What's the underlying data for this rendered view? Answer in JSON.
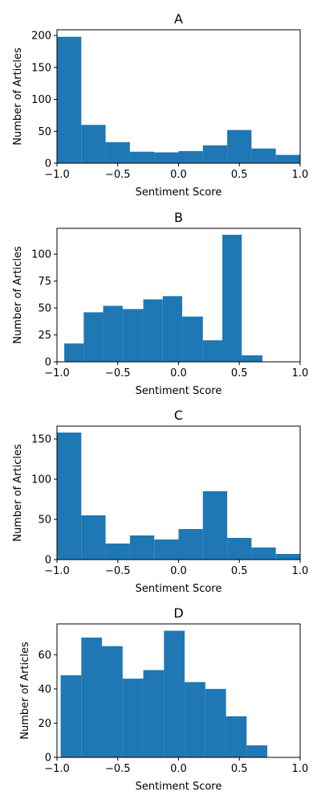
{
  "chart_data": [
    {
      "type": "bar",
      "title": "A",
      "xlabel": "Sentiment Score",
      "ylabel": "Number of Articles",
      "xlim": [
        -1.0,
        1.0
      ],
      "ylim": [
        0,
        209
      ],
      "xticks": [
        -1.0,
        -0.5,
        0.0,
        0.5,
        1.0
      ],
      "xtick_labels": [
        "−1.0",
        "−0.5",
        "0.0",
        "0.5",
        "1.0"
      ],
      "yticks": [
        0,
        50,
        100,
        150,
        200
      ],
      "bins": [
        {
          "x0": -1.0,
          "x1": -0.8,
          "value": 198
        },
        {
          "x0": -0.8,
          "x1": -0.6,
          "value": 60
        },
        {
          "x0": -0.6,
          "x1": -0.4,
          "value": 33
        },
        {
          "x0": -0.4,
          "x1": -0.2,
          "value": 18
        },
        {
          "x0": -0.2,
          "x1": 0.0,
          "value": 17
        },
        {
          "x0": 0.0,
          "x1": 0.2,
          "value": 19
        },
        {
          "x0": 0.2,
          "x1": 0.4,
          "value": 28
        },
        {
          "x0": 0.4,
          "x1": 0.6,
          "value": 52
        },
        {
          "x0": 0.6,
          "x1": 0.8,
          "value": 23
        },
        {
          "x0": 0.8,
          "x1": 1.0,
          "value": 13
        }
      ],
      "color": "#1f77b4"
    },
    {
      "type": "bar",
      "title": "B",
      "xlabel": "Sentiment Score",
      "ylabel": "Number of Articles",
      "xlim": [
        -1.0,
        1.0
      ],
      "ylim": [
        0,
        124
      ],
      "xticks": [
        -1.0,
        -0.5,
        0.0,
        0.5,
        1.0
      ],
      "xtick_labels": [
        "−1.0",
        "−0.5",
        "0.0",
        "0.5",
        "1.0"
      ],
      "yticks": [
        0,
        25,
        50,
        75,
        100
      ],
      "bins": [
        {
          "x0": -0.94,
          "x1": -0.78,
          "value": 17
        },
        {
          "x0": -0.78,
          "x1": -0.62,
          "value": 46
        },
        {
          "x0": -0.62,
          "x1": -0.46,
          "value": 52
        },
        {
          "x0": -0.46,
          "x1": -0.29,
          "value": 49
        },
        {
          "x0": -0.29,
          "x1": -0.13,
          "value": 58
        },
        {
          "x0": -0.13,
          "x1": 0.03,
          "value": 61
        },
        {
          "x0": 0.03,
          "x1": 0.2,
          "value": 42
        },
        {
          "x0": 0.2,
          "x1": 0.36,
          "value": 20
        },
        {
          "x0": 0.36,
          "x1": 0.52,
          "value": 118
        },
        {
          "x0": 0.52,
          "x1": 0.69,
          "value": 6
        }
      ],
      "color": "#1f77b4"
    },
    {
      "type": "bar",
      "title": "C",
      "xlabel": "Sentiment Score",
      "ylabel": "Number of Articles",
      "xlim": [
        -1.0,
        1.0
      ],
      "ylim": [
        0,
        166
      ],
      "xticks": [
        -1.0,
        -0.5,
        0.0,
        0.5,
        1.0
      ],
      "xtick_labels": [
        "−1.0",
        "−0.5",
        "0.0",
        "0.5",
        "1.0"
      ],
      "yticks": [
        0,
        50,
        100,
        150
      ],
      "bins": [
        {
          "x0": -1.0,
          "x1": -0.8,
          "value": 158
        },
        {
          "x0": -0.8,
          "x1": -0.6,
          "value": 55
        },
        {
          "x0": -0.6,
          "x1": -0.4,
          "value": 20
        },
        {
          "x0": -0.4,
          "x1": -0.2,
          "value": 30
        },
        {
          "x0": -0.2,
          "x1": 0.0,
          "value": 25
        },
        {
          "x0": 0.0,
          "x1": 0.2,
          "value": 38
        },
        {
          "x0": 0.2,
          "x1": 0.4,
          "value": 85
        },
        {
          "x0": 0.4,
          "x1": 0.6,
          "value": 27
        },
        {
          "x0": 0.6,
          "x1": 0.8,
          "value": 15
        },
        {
          "x0": 0.8,
          "x1": 1.0,
          "value": 7
        }
      ],
      "color": "#1f77b4"
    },
    {
      "type": "bar",
      "title": "D",
      "xlabel": "Sentiment Score",
      "ylabel": "Number of Articles",
      "xlim": [
        -1.0,
        1.0
      ],
      "ylim": [
        0,
        78
      ],
      "xticks": [
        -1.0,
        -0.5,
        0.0,
        0.5,
        1.0
      ],
      "xtick_labels": [
        "−1.0",
        "−0.5",
        "0.0",
        "0.5",
        "1.0"
      ],
      "yticks": [
        0,
        20,
        40,
        60
      ],
      "bins": [
        {
          "x0": -0.97,
          "x1": -0.8,
          "value": 48
        },
        {
          "x0": -0.8,
          "x1": -0.63,
          "value": 70
        },
        {
          "x0": -0.63,
          "x1": -0.46,
          "value": 65
        },
        {
          "x0": -0.46,
          "x1": -0.29,
          "value": 46
        },
        {
          "x0": -0.29,
          "x1": -0.12,
          "value": 51
        },
        {
          "x0": -0.12,
          "x1": 0.05,
          "value": 74
        },
        {
          "x0": 0.05,
          "x1": 0.22,
          "value": 44
        },
        {
          "x0": 0.22,
          "x1": 0.39,
          "value": 40
        },
        {
          "x0": 0.39,
          "x1": 0.56,
          "value": 24
        },
        {
          "x0": 0.56,
          "x1": 0.73,
          "value": 7
        }
      ],
      "color": "#1f77b4"
    }
  ]
}
